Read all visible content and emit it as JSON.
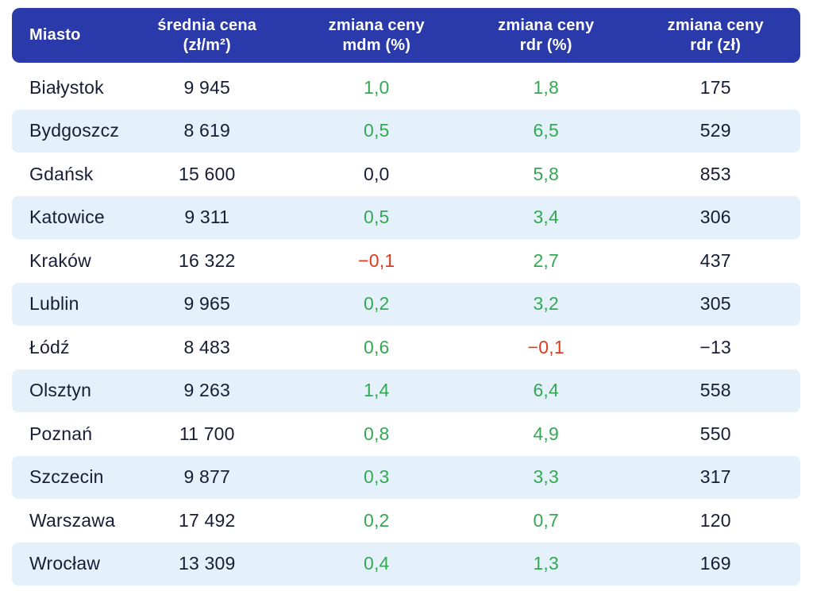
{
  "colors": {
    "header_bg": "#2a3aab",
    "header_text": "#ffffff",
    "row_alt_bg": "#e4f1fb",
    "text_dark": "#171d35",
    "positive_green": "#34a853",
    "negative_red": "#e03a1e"
  },
  "table": {
    "headers": [
      {
        "id": "miasto",
        "lines": [
          "Miasto"
        ]
      },
      {
        "id": "srednia-cena",
        "lines": [
          "średnia cena",
          "(zł/m²)"
        ]
      },
      {
        "id": "zmiana-mdm",
        "lines": [
          "zmiana ceny",
          "mdm (%)"
        ]
      },
      {
        "id": "zmiana-rdr-pct",
        "lines": [
          "zmiana ceny",
          "rdr (%)"
        ]
      },
      {
        "id": "zmiana-rdr-zl",
        "lines": [
          "zmiana ceny",
          "rdr (zł)"
        ]
      }
    ],
    "rows": [
      {
        "city": "Białystok",
        "avg_price": "9 945",
        "mdm_pct": "1,0",
        "rdr_pct": "1,8",
        "rdr_zl": "175"
      },
      {
        "city": "Bydgoszcz",
        "avg_price": "8 619",
        "mdm_pct": "0,5",
        "rdr_pct": "6,5",
        "rdr_zl": "529"
      },
      {
        "city": "Gdańsk",
        "avg_price": "15 600",
        "mdm_pct": "0,0",
        "rdr_pct": "5,8",
        "rdr_zl": "853"
      },
      {
        "city": "Katowice",
        "avg_price": "9 311",
        "mdm_pct": "0,5",
        "rdr_pct": "3,4",
        "rdr_zl": "306"
      },
      {
        "city": "Kraków",
        "avg_price": "16 322",
        "mdm_pct": "−0,1",
        "rdr_pct": "2,7",
        "rdr_zl": "437"
      },
      {
        "city": "Lublin",
        "avg_price": "9 965",
        "mdm_pct": "0,2",
        "rdr_pct": "3,2",
        "rdr_zl": "305"
      },
      {
        "city": "Łódź",
        "avg_price": "8 483",
        "mdm_pct": "0,6",
        "rdr_pct": "−0,1",
        "rdr_zl": "−13"
      },
      {
        "city": "Olsztyn",
        "avg_price": "9 263",
        "mdm_pct": "1,4",
        "rdr_pct": "6,4",
        "rdr_zl": "558"
      },
      {
        "city": "Poznań",
        "avg_price": "11 700",
        "mdm_pct": "0,8",
        "rdr_pct": "4,9",
        "rdr_zl": "550"
      },
      {
        "city": "Szczecin",
        "avg_price": "9 877",
        "mdm_pct": "0,3",
        "rdr_pct": "3,3",
        "rdr_zl": "317"
      },
      {
        "city": "Warszawa",
        "avg_price": "17 492",
        "mdm_pct": "0,2",
        "rdr_pct": "0,7",
        "rdr_zl": "120"
      },
      {
        "city": "Wrocław",
        "avg_price": "13 309",
        "mdm_pct": "0,4",
        "rdr_pct": "1,3",
        "rdr_zl": "169"
      }
    ]
  }
}
